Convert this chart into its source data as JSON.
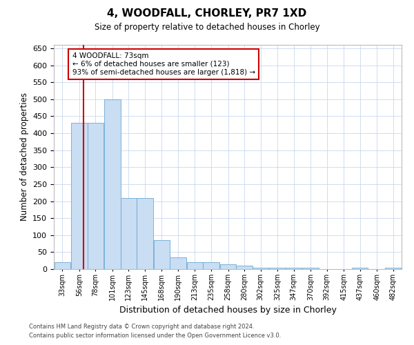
{
  "title": "4, WOODFALL, CHORLEY, PR7 1XD",
  "subtitle": "Size of property relative to detached houses in Chorley",
  "xlabel": "Distribution of detached houses by size in Chorley",
  "ylabel": "Number of detached properties",
  "bar_color": "#c9ddf3",
  "bar_edge_color": "#6aaad4",
  "background_color": "#ffffff",
  "plot_bg_color": "#ffffff",
  "grid_color": "#c8d8ee",
  "annotation_text": "4 WOODFALL: 73sqm\n← 6% of detached houses are smaller (123)\n93% of semi-detached houses are larger (1,818) →",
  "annotation_box_color": "#ffffff",
  "annotation_box_edge_color": "#cc0000",
  "vline_color": "#cc0000",
  "footer_line1": "Contains HM Land Registry data © Crown copyright and database right 2024.",
  "footer_line2": "Contains public sector information licensed under the Open Government Licence v3.0.",
  "categories": [
    "33sqm",
    "56sqm",
    "78sqm",
    "101sqm",
    "123sqm",
    "145sqm",
    "168sqm",
    "190sqm",
    "213sqm",
    "235sqm",
    "258sqm",
    "280sqm",
    "302sqm",
    "325sqm",
    "347sqm",
    "370sqm",
    "392sqm",
    "415sqm",
    "437sqm",
    "460sqm",
    "482sqm"
  ],
  "bin_edges": [
    33,
    56,
    78,
    101,
    123,
    145,
    168,
    190,
    213,
    235,
    258,
    280,
    302,
    325,
    347,
    370,
    392,
    415,
    437,
    460,
    482
  ],
  "values": [
    20,
    430,
    430,
    500,
    210,
    210,
    85,
    35,
    20,
    20,
    15,
    10,
    5,
    5,
    5,
    5,
    0,
    0,
    5,
    0,
    5
  ],
  "vline_x_idx": 1,
  "ylim": [
    0,
    660
  ],
  "yticks": [
    0,
    50,
    100,
    150,
    200,
    250,
    300,
    350,
    400,
    450,
    500,
    550,
    600,
    650
  ]
}
